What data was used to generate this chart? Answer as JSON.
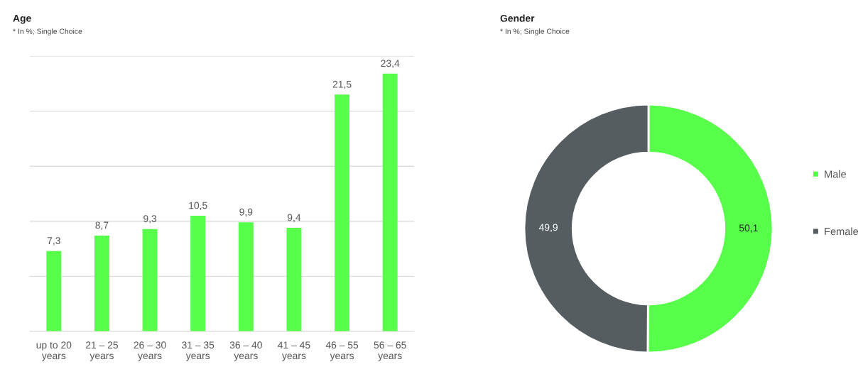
{
  "chart_data": [
    {
      "type": "bar",
      "title": "Age",
      "subtitle": "* In %; Single Choice",
      "categories": [
        "up to 20 years",
        "21 – 25 years",
        "26 – 30 years",
        "31 – 35 years",
        "36 – 40 years",
        "41 – 45 years",
        "46 – 55 years",
        "56 – 65 years"
      ],
      "values": [
        7.3,
        8.7,
        9.3,
        10.5,
        9.9,
        9.4,
        21.5,
        23.4
      ],
      "value_labels": [
        "7,3",
        "8,7",
        "9,3",
        "10,5",
        "9,9",
        "9,4",
        "21,5",
        "23,4"
      ],
      "color": "#57ff4a",
      "ylim": [
        0,
        25
      ],
      "yticks": [
        {
          "value": 0,
          "label": null
        },
        {
          "value": 5,
          "label": null
        },
        {
          "value": 10,
          "label": null
        },
        {
          "value": 15,
          "label": null
        },
        {
          "value": 20,
          "label": null
        },
        {
          "value": 25,
          "label": null
        }
      ],
      "grid": "y",
      "tick_labels": "x"
    },
    {
      "type": "donut",
      "title": "Gender",
      "subtitle": "* In %; Single Choice",
      "categories": [
        "Male",
        "Female"
      ],
      "values": [
        50.1,
        49.9
      ],
      "value_labels": [
        "50,1",
        "49,9"
      ],
      "colors": [
        "#57ff4a",
        "#565d60"
      ],
      "legend": "right"
    }
  ]
}
